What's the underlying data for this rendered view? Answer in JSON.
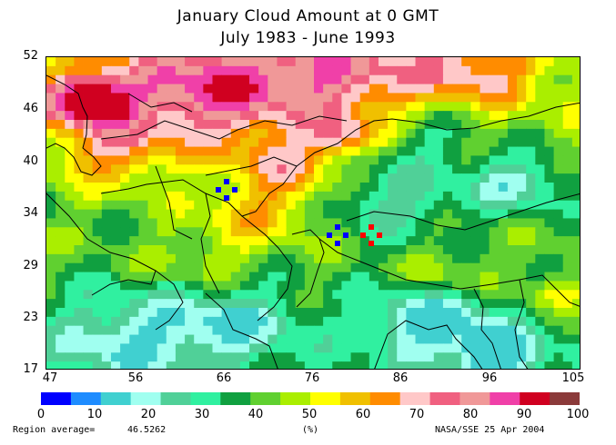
{
  "title_line1": "January Cloud Amount at 0 GMT",
  "title_line2": "July 1983 - June 1993",
  "y_ticks": [
    "52",
    "46",
    "40",
    "34",
    "29",
    "23",
    "17"
  ],
  "x_ticks": [
    "47",
    "56",
    "66",
    "76",
    "86",
    "96",
    "105"
  ],
  "colorbar": {
    "colors": [
      "#0000ff",
      "#1e8cff",
      "#40d0d0",
      "#a0fff0",
      "#50d098",
      "#30f0a0",
      "#10a040",
      "#60d030",
      "#aaee00",
      "#ffff00",
      "#f0c000",
      "#ff8c00",
      "#ffc8c8",
      "#f06080",
      "#f09898",
      "#f040a8",
      "#d00020",
      "#8b3a3a"
    ],
    "tick_labels": [
      "0",
      "10",
      "20",
      "30",
      "40",
      "50",
      "60",
      "70",
      "80",
      "90",
      "100"
    ]
  },
  "unit_label": "(%)",
  "region_average_label": "Region average=",
  "region_average_value": "46.5262",
  "credit": "NASA/SSE  25 Apr 2004"
}
